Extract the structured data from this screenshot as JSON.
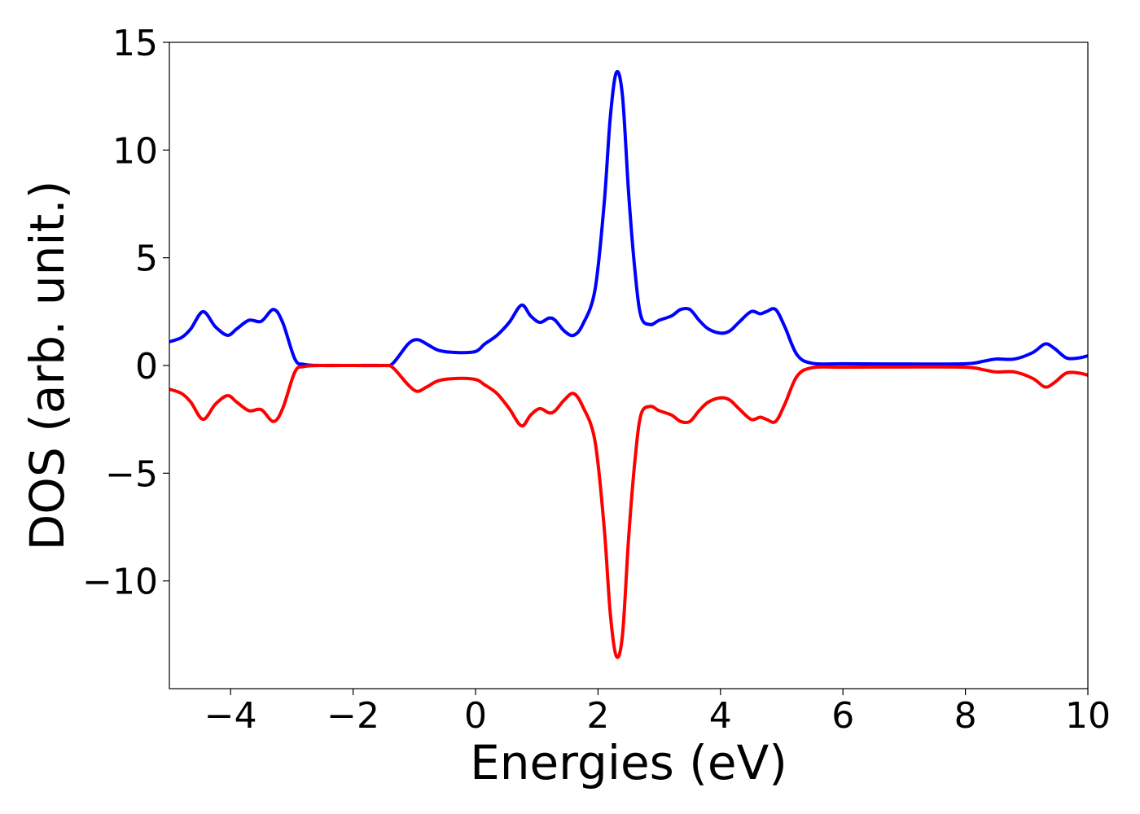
{
  "chart_data": {
    "type": "line",
    "title": "",
    "xlabel": "Energies (eV)",
    "ylabel": "DOS (arb. unit.)",
    "xlim": [
      -5,
      10
    ],
    "ylim": [
      -15,
      15
    ],
    "x_ticks": [
      -4,
      -2,
      0,
      2,
      4,
      6,
      8,
      10
    ],
    "y_ticks": [
      -10,
      -5,
      0,
      5,
      10,
      15
    ],
    "x_tick_labels": [
      "−4",
      "−2",
      "0",
      "2",
      "4",
      "6",
      "8",
      "10"
    ],
    "y_tick_labels": [
      "−10",
      "−5",
      "0",
      "5",
      "10",
      "15"
    ],
    "grid": false,
    "legend": "none",
    "series": [
      {
        "color": "#0000ff",
        "x": [
          -5.0,
          -4.8,
          -4.65,
          -4.45,
          -4.25,
          -4.05,
          -3.9,
          -3.7,
          -3.5,
          -3.3,
          -3.15,
          -2.95,
          -2.8,
          -2.5,
          -2.0,
          -1.5,
          -1.35,
          -1.1,
          -0.95,
          -0.8,
          -0.6,
          -0.3,
          0.0,
          0.15,
          0.35,
          0.55,
          0.75,
          0.9,
          1.05,
          1.2,
          1.3,
          1.45,
          1.6,
          1.75,
          1.95,
          2.1,
          2.2,
          2.3,
          2.4,
          2.5,
          2.6,
          2.7,
          2.85,
          3.0,
          3.2,
          3.35,
          3.5,
          3.65,
          3.8,
          4.0,
          4.15,
          4.3,
          4.5,
          4.65,
          4.75,
          4.9,
          5.05,
          5.25,
          5.5,
          6.0,
          7.0,
          8.0,
          8.3,
          8.5,
          8.8,
          9.1,
          9.3,
          9.45,
          9.65,
          9.85,
          10.0
        ],
        "y": [
          1.1,
          1.3,
          1.7,
          2.5,
          1.8,
          1.4,
          1.7,
          2.1,
          2.05,
          2.6,
          2.0,
          0.3,
          0.05,
          0.0,
          0.0,
          0.0,
          0.1,
          1.0,
          1.2,
          1.0,
          0.7,
          0.6,
          0.65,
          1.0,
          1.4,
          2.0,
          2.8,
          2.3,
          2.0,
          2.2,
          2.1,
          1.6,
          1.4,
          1.9,
          3.5,
          7.5,
          11.5,
          13.6,
          12.5,
          8.0,
          4.5,
          2.3,
          1.9,
          2.1,
          2.3,
          2.6,
          2.6,
          2.1,
          1.7,
          1.5,
          1.6,
          2.0,
          2.5,
          2.4,
          2.5,
          2.6,
          1.8,
          0.5,
          0.1,
          0.08,
          0.07,
          0.08,
          0.2,
          0.3,
          0.3,
          0.6,
          1.0,
          0.8,
          0.35,
          0.35,
          0.45
        ]
      },
      {
        "color": "#ff0000",
        "x": [
          -5.0,
          -4.8,
          -4.65,
          -4.45,
          -4.25,
          -4.05,
          -3.9,
          -3.7,
          -3.5,
          -3.3,
          -3.15,
          -2.95,
          -2.8,
          -2.5,
          -2.0,
          -1.5,
          -1.35,
          -1.1,
          -0.95,
          -0.8,
          -0.6,
          -0.3,
          0.0,
          0.15,
          0.35,
          0.55,
          0.75,
          0.9,
          1.05,
          1.2,
          1.3,
          1.45,
          1.6,
          1.75,
          1.95,
          2.1,
          2.2,
          2.3,
          2.4,
          2.5,
          2.6,
          2.7,
          2.85,
          3.0,
          3.2,
          3.35,
          3.5,
          3.65,
          3.8,
          4.0,
          4.15,
          4.3,
          4.5,
          4.65,
          4.75,
          4.9,
          5.05,
          5.25,
          5.5,
          6.0,
          7.0,
          8.0,
          8.3,
          8.5,
          8.8,
          9.1,
          9.3,
          9.45,
          9.65,
          9.85,
          10.0
        ],
        "y": [
          -1.1,
          -1.3,
          -1.7,
          -2.5,
          -1.8,
          -1.4,
          -1.7,
          -2.1,
          -2.05,
          -2.6,
          -2.0,
          -0.3,
          -0.05,
          0.0,
          0.0,
          0.0,
          -0.1,
          -0.9,
          -1.2,
          -1.0,
          -0.7,
          -0.6,
          -0.65,
          -0.9,
          -1.3,
          -2.0,
          -2.8,
          -2.3,
          -2.0,
          -2.2,
          -2.1,
          -1.6,
          -1.3,
          -1.9,
          -3.5,
          -7.5,
          -11.5,
          -13.5,
          -12.5,
          -8.0,
          -4.5,
          -2.3,
          -1.9,
          -2.1,
          -2.3,
          -2.6,
          -2.6,
          -2.1,
          -1.7,
          -1.5,
          -1.6,
          -2.0,
          -2.5,
          -2.4,
          -2.5,
          -2.6,
          -1.8,
          -0.5,
          -0.1,
          -0.08,
          -0.07,
          -0.08,
          -0.2,
          -0.3,
          -0.3,
          -0.6,
          -1.0,
          -0.8,
          -0.35,
          -0.35,
          -0.45
        ]
      }
    ]
  }
}
